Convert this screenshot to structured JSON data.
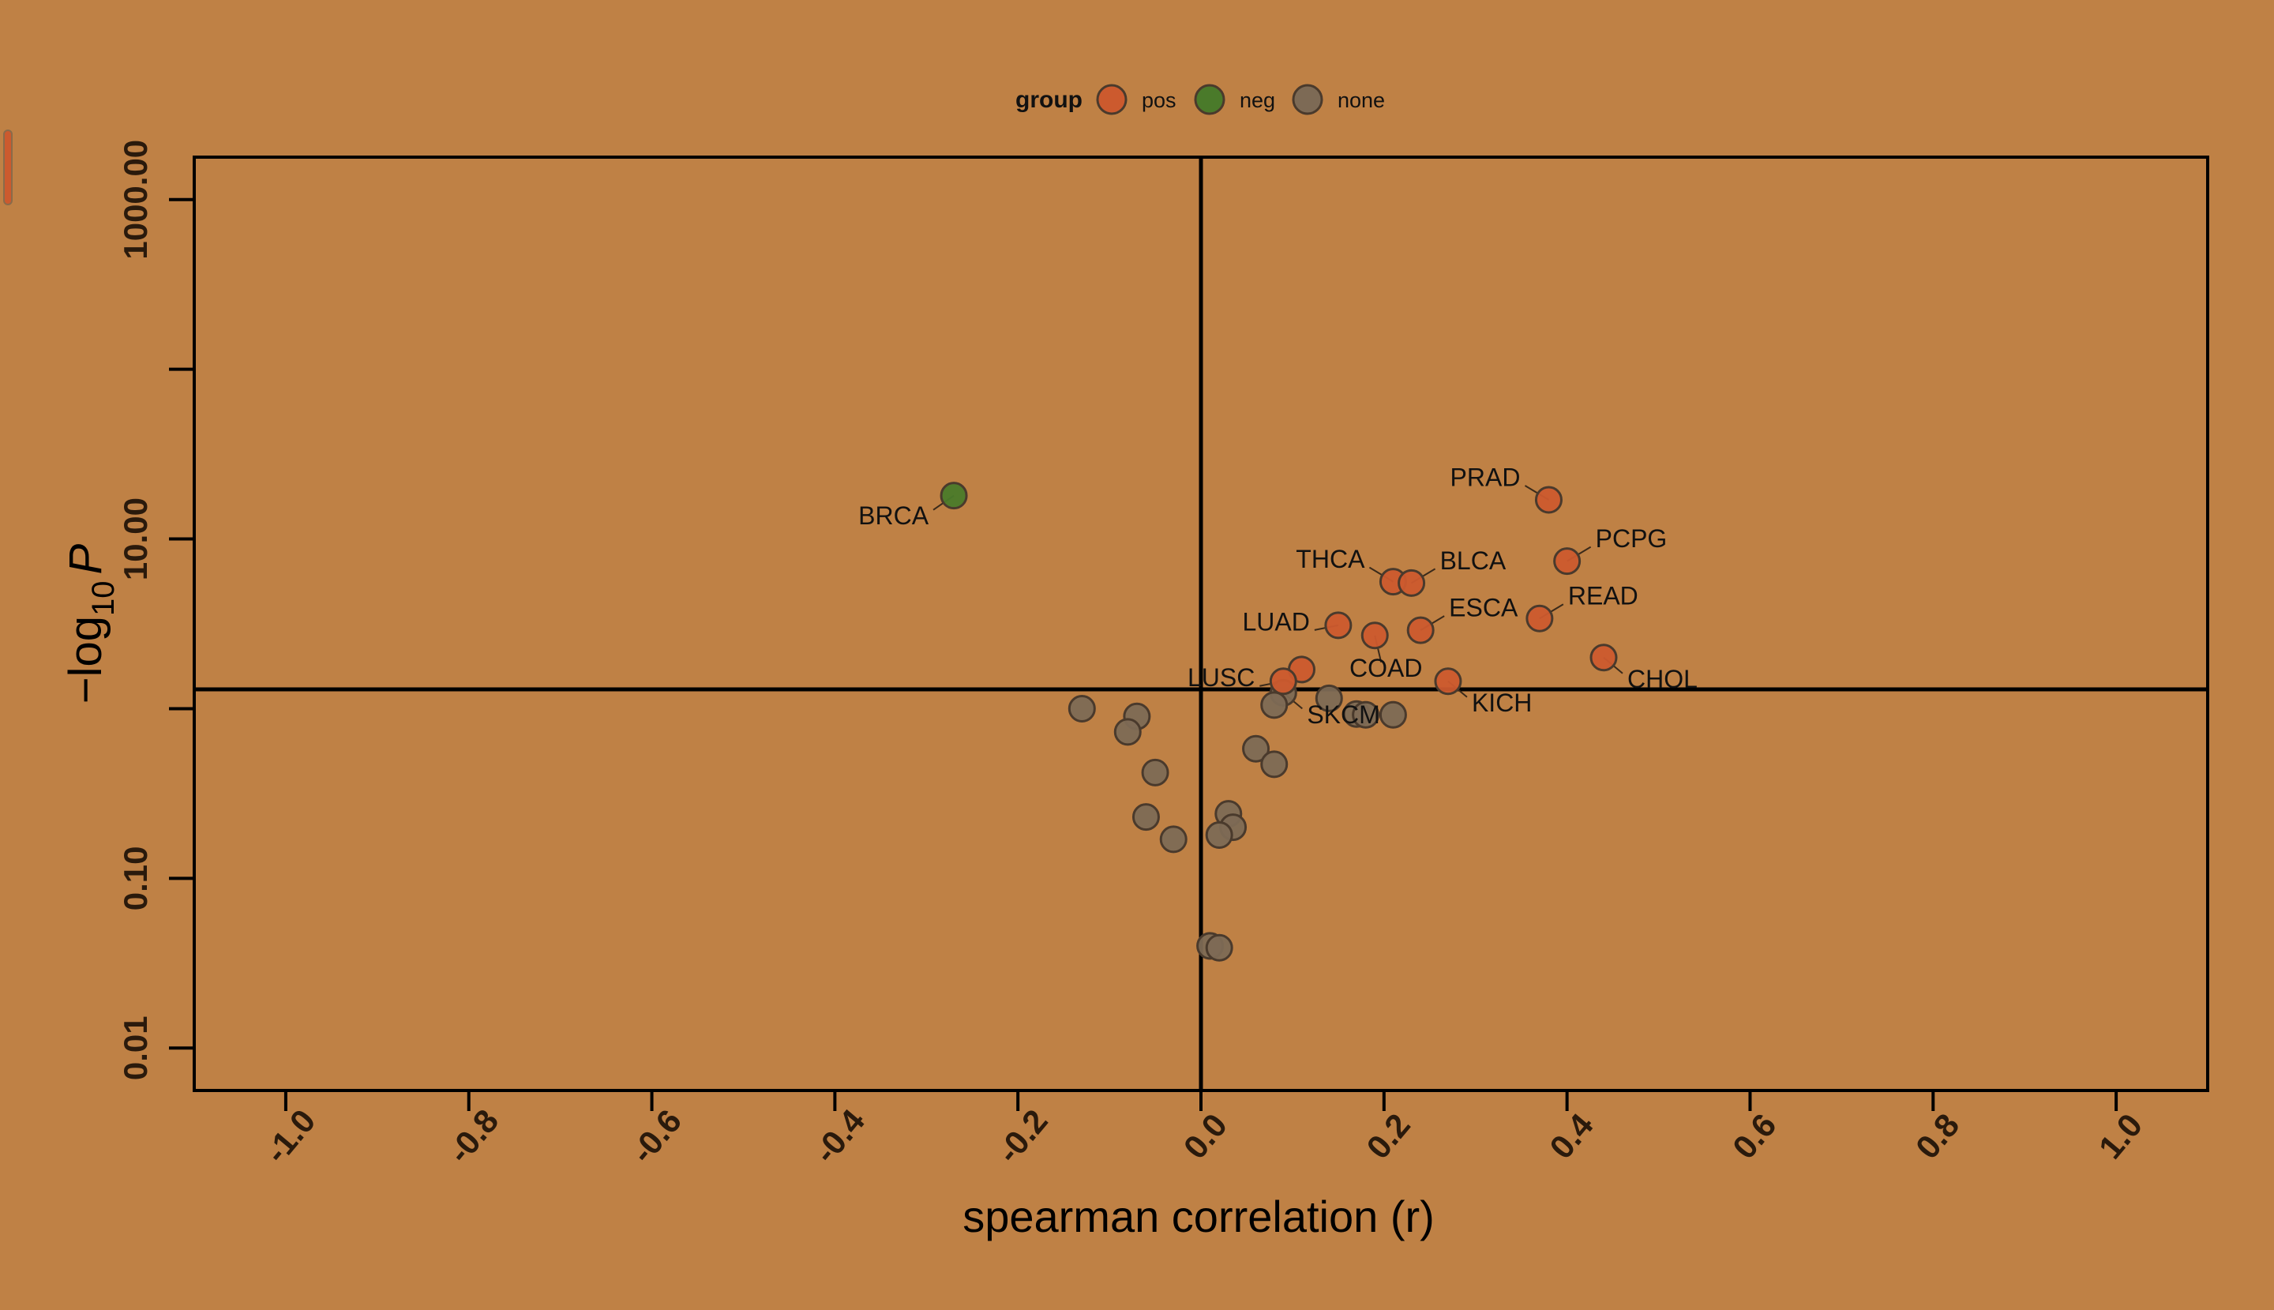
{
  "chart_data": {
    "type": "scatter",
    "title": "",
    "xlabel": "spearman correlation (r)",
    "ylabel_main": "−log",
    "ylabel_sub": "10",
    "ylabel_var": "P",
    "xlim": [
      -1.1,
      1.1
    ],
    "ylim_log10": [
      -2.25,
      3.25
    ],
    "y_scale": "log10",
    "x_ticks": [
      -1.0,
      -0.8,
      -0.6,
      -0.4,
      -0.2,
      0.0,
      0.2,
      0.4,
      0.6,
      0.8,
      1.0
    ],
    "x_tick_labels": [
      "-1.0",
      "-0.8",
      "-0.6",
      "-0.4",
      "-0.2",
      "0.0",
      "0.2",
      "0.4",
      "0.6",
      "0.8",
      "1.0"
    ],
    "y_ticks": [
      0.01,
      0.1,
      10,
      1000
    ],
    "y_tick_labels": [
      "0.01",
      "0.10",
      "10.00",
      "1000.00"
    ],
    "y_minor_ticks": [
      1,
      100
    ],
    "threshold_x": 0.0,
    "threshold_y": 1.3,
    "grid": false,
    "legend": {
      "title": "group",
      "position": "top",
      "entries": [
        {
          "label": "pos",
          "color": "#cc5a2e"
        },
        {
          "label": "neg",
          "color": "#4a7a2a"
        },
        {
          "label": "none",
          "color": "#7d6a55"
        }
      ]
    },
    "colors": {
      "pos": "#cc5a2e",
      "neg": "#4a7a2a",
      "none": "#7d6a55",
      "outline": "#4a3a2c",
      "axis": "#000000"
    },
    "points": [
      {
        "label": "BRCA",
        "r": -0.27,
        "p": 18.0,
        "group": "neg",
        "label_pos": "bl"
      },
      {
        "label": "PRAD",
        "r": 0.38,
        "p": 17.0,
        "group": "pos",
        "label_pos": "tl"
      },
      {
        "label": "PCPG",
        "r": 0.4,
        "p": 7.4,
        "group": "pos",
        "label_pos": "tr"
      },
      {
        "label": "THCA",
        "r": 0.21,
        "p": 5.6,
        "group": "pos",
        "label_pos": "tl"
      },
      {
        "label": "BLCA",
        "r": 0.23,
        "p": 5.5,
        "group": "pos",
        "label_pos": "tr"
      },
      {
        "label": "READ",
        "r": 0.37,
        "p": 3.4,
        "group": "pos",
        "label_pos": "tr"
      },
      {
        "label": "ESCA",
        "r": 0.24,
        "p": 2.9,
        "group": "pos",
        "label_pos": "tr"
      },
      {
        "label": "LUAD",
        "r": 0.15,
        "p": 3.1,
        "group": "pos",
        "label_pos": "l"
      },
      {
        "label": "COAD",
        "r": 0.19,
        "p": 2.7,
        "group": "pos",
        "label_pos": "b"
      },
      {
        "label": "CHOL",
        "r": 0.44,
        "p": 2.0,
        "group": "pos",
        "label_pos": "br"
      },
      {
        "label": "",
        "r": 0.11,
        "p": 1.7,
        "group": "pos",
        "label_pos": ""
      },
      {
        "label": "LUSC",
        "r": 0.09,
        "p": 1.45,
        "group": "pos",
        "label_pos": "l"
      },
      {
        "label": "KICH",
        "r": 0.27,
        "p": 1.45,
        "group": "pos",
        "label_pos": "br"
      },
      {
        "label": "SKCM",
        "r": 0.09,
        "p": 1.24,
        "group": "none",
        "label_pos": "br"
      },
      {
        "label": "",
        "r": 0.14,
        "p": 1.15,
        "group": "none",
        "label_pos": ""
      },
      {
        "label": "",
        "r": 0.08,
        "p": 1.05,
        "group": "none",
        "label_pos": ""
      },
      {
        "label": "",
        "r": 0.17,
        "p": 0.93,
        "group": "none",
        "label_pos": ""
      },
      {
        "label": "",
        "r": 0.18,
        "p": 0.92,
        "group": "none",
        "label_pos": ""
      },
      {
        "label": "",
        "r": 0.21,
        "p": 0.92,
        "group": "none",
        "label_pos": ""
      },
      {
        "label": "",
        "r": -0.13,
        "p": 1.0,
        "group": "none",
        "label_pos": ""
      },
      {
        "label": "",
        "r": -0.07,
        "p": 0.9,
        "group": "none",
        "label_pos": ""
      },
      {
        "label": "",
        "r": -0.08,
        "p": 0.73,
        "group": "none",
        "label_pos": ""
      },
      {
        "label": "",
        "r": 0.06,
        "p": 0.58,
        "group": "none",
        "label_pos": ""
      },
      {
        "label": "",
        "r": 0.08,
        "p": 0.47,
        "group": "none",
        "label_pos": ""
      },
      {
        "label": "",
        "r": -0.05,
        "p": 0.42,
        "group": "none",
        "label_pos": ""
      },
      {
        "label": "",
        "r": 0.03,
        "p": 0.24,
        "group": "none",
        "label_pos": ""
      },
      {
        "label": "",
        "r": -0.06,
        "p": 0.23,
        "group": "none",
        "label_pos": ""
      },
      {
        "label": "",
        "r": 0.035,
        "p": 0.2,
        "group": "none",
        "label_pos": ""
      },
      {
        "label": "",
        "r": 0.02,
        "p": 0.18,
        "group": "none",
        "label_pos": ""
      },
      {
        "label": "",
        "r": -0.03,
        "p": 0.17,
        "group": "none",
        "label_pos": ""
      },
      {
        "label": "",
        "r": 0.01,
        "p": 0.04,
        "group": "none",
        "label_pos": ""
      },
      {
        "label": "",
        "r": 0.02,
        "p": 0.039,
        "group": "none",
        "label_pos": ""
      }
    ]
  }
}
